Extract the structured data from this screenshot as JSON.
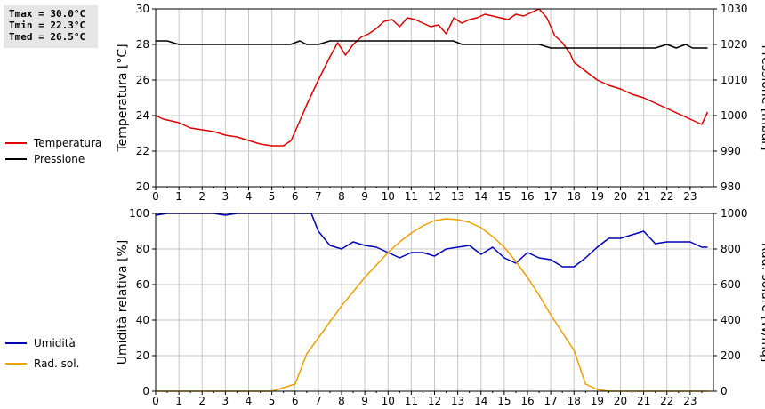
{
  "stats": {
    "tmax": "Tmax = 30.0°C",
    "tmin": "Tmin = 22.3°C",
    "tmed": "Tmed = 26.5°C"
  },
  "colors": {
    "temperature": "#dd0000",
    "pressure": "#000000",
    "humidity": "#0000bb",
    "radiation": "#eea000",
    "grid": "#c8c8c8"
  },
  "chart_data": [
    {
      "type": "line",
      "xlim": [
        0,
        24
      ],
      "x_ticks": [
        0,
        1,
        2,
        3,
        4,
        5,
        6,
        7,
        8,
        9,
        10,
        11,
        12,
        13,
        14,
        15,
        16,
        17,
        18,
        19,
        20,
        21,
        22,
        23
      ],
      "ylabel": "Temperatura [°C]",
      "ylim": [
        20,
        30
      ],
      "y_ticks": [
        20,
        22,
        24,
        26,
        28,
        30
      ],
      "y2label": "Pressione [mbar]",
      "y2lim": [
        980,
        1030
      ],
      "y2_ticks": [
        980,
        990,
        1000,
        1010,
        1020,
        1030
      ],
      "grid": true,
      "legend": "left",
      "series": [
        {
          "name": "Temperatura",
          "axis": "left",
          "color": "#dd0000",
          "x": [
            0,
            0.33,
            0.67,
            1,
            1.5,
            2,
            2.5,
            3,
            3.5,
            4,
            4.5,
            5,
            5.5,
            5.83,
            6.17,
            6.5,
            7,
            7.5,
            7.83,
            8.17,
            8.5,
            8.83,
            9.17,
            9.5,
            9.83,
            10.17,
            10.5,
            10.83,
            11.17,
            11.5,
            11.83,
            12.17,
            12.5,
            12.83,
            13.17,
            13.5,
            13.83,
            14.17,
            14.5,
            14.83,
            15.17,
            15.5,
            15.83,
            16.17,
            16.5,
            16.83,
            17.17,
            17.5,
            17.83,
            18,
            18.5,
            19,
            19.5,
            20,
            20.5,
            21,
            21.5,
            22,
            22.5,
            23,
            23.5,
            23.75
          ],
          "values": [
            24.0,
            23.8,
            23.7,
            23.6,
            23.3,
            23.2,
            23.1,
            22.9,
            22.8,
            22.6,
            22.4,
            22.3,
            22.3,
            22.6,
            23.6,
            24.6,
            26.0,
            27.3,
            28.1,
            27.4,
            28.0,
            28.4,
            28.6,
            28.9,
            29.3,
            29.4,
            29.0,
            29.5,
            29.4,
            29.2,
            29.0,
            29.1,
            28.6,
            29.5,
            29.2,
            29.4,
            29.5,
            29.7,
            29.6,
            29.5,
            29.4,
            29.7,
            29.6,
            29.8,
            30.0,
            29.5,
            28.5,
            28.1,
            27.5,
            27.0,
            26.5,
            26.0,
            25.7,
            25.5,
            25.2,
            25.0,
            24.7,
            24.4,
            24.1,
            23.8,
            23.5,
            24.2
          ]
        },
        {
          "name": "Pressione",
          "axis": "right",
          "color": "#000000",
          "x": [
            0,
            0.5,
            1,
            1.5,
            2,
            3,
            4,
            5,
            5.8,
            6.2,
            6.5,
            7,
            7.5,
            8,
            9,
            10,
            11,
            12,
            12.8,
            13.2,
            14,
            15,
            16,
            16.5,
            17,
            18,
            19,
            20,
            21,
            21.5,
            22,
            22.4,
            22.8,
            23.1,
            23.5,
            23.75
          ],
          "values": [
            1021,
            1021,
            1020,
            1020,
            1020,
            1020,
            1020,
            1020,
            1020,
            1021,
            1020,
            1020,
            1021,
            1021,
            1021,
            1021,
            1021,
            1021,
            1021,
            1020,
            1020,
            1020,
            1020,
            1020,
            1019,
            1019,
            1019,
            1019,
            1019,
            1019,
            1020,
            1019,
            1020,
            1019,
            1019,
            1019
          ]
        }
      ]
    },
    {
      "type": "line",
      "xlim": [
        0,
        24
      ],
      "x_ticks": [
        0,
        1,
        2,
        3,
        4,
        5,
        6,
        7,
        8,
        9,
        10,
        11,
        12,
        13,
        14,
        15,
        16,
        17,
        18,
        19,
        20,
        21,
        22,
        23
      ],
      "ylabel": "Umidità relativa [%]",
      "ylim": [
        0,
        100
      ],
      "y_ticks": [
        0,
        20,
        40,
        60,
        80,
        100
      ],
      "y2label": "Rad. solare [W/mq]",
      "y2lim": [
        0,
        1000
      ],
      "y2_ticks": [
        0,
        200,
        400,
        600,
        800,
        1000
      ],
      "grid": true,
      "legend": "left",
      "series": [
        {
          "name": "Umidità",
          "axis": "left",
          "color": "#0000bb",
          "x": [
            0,
            0.5,
            1,
            2,
            2.5,
            3,
            3.5,
            4,
            5,
            6,
            6.7,
            7,
            7.5,
            8,
            8.5,
            9,
            9.5,
            10,
            10.5,
            11,
            11.5,
            12,
            12.5,
            13,
            13.5,
            14,
            14.5,
            15,
            15.5,
            16,
            16.5,
            17,
            17.5,
            18,
            18.5,
            19,
            19.5,
            20,
            20.5,
            21,
            21.5,
            22,
            22.5,
            23,
            23.5,
            23.75
          ],
          "values": [
            99,
            100,
            100,
            100,
            100,
            99,
            100,
            100,
            100,
            100,
            100,
            90,
            82,
            80,
            84,
            82,
            81,
            78,
            75,
            78,
            78,
            76,
            80,
            81,
            82,
            77,
            81,
            75,
            72,
            78,
            75,
            74,
            70,
            70,
            75,
            81,
            86,
            86,
            88,
            90,
            83,
            84,
            84,
            84,
            81,
            81
          ]
        },
        {
          "name": "Rad. sol.",
          "axis": "right",
          "color": "#eea000",
          "x": [
            0,
            1,
            2,
            3,
            4,
            5,
            5.5,
            6,
            6.5,
            7,
            7.5,
            8,
            8.5,
            9,
            9.5,
            10,
            10.5,
            11,
            11.5,
            12,
            12.5,
            13,
            13.5,
            14,
            14.5,
            15,
            15.5,
            16,
            16.5,
            17,
            17.5,
            18,
            18.5,
            19,
            19.5,
            20,
            21,
            22,
            23,
            23.75
          ],
          "values": [
            0,
            0,
            0,
            0,
            0,
            0,
            20,
            40,
            210,
            300,
            390,
            480,
            560,
            640,
            710,
            780,
            840,
            890,
            930,
            960,
            970,
            965,
            950,
            920,
            870,
            810,
            730,
            640,
            540,
            430,
            330,
            230,
            40,
            10,
            0,
            0,
            0,
            0,
            0,
            0
          ]
        }
      ]
    }
  ]
}
